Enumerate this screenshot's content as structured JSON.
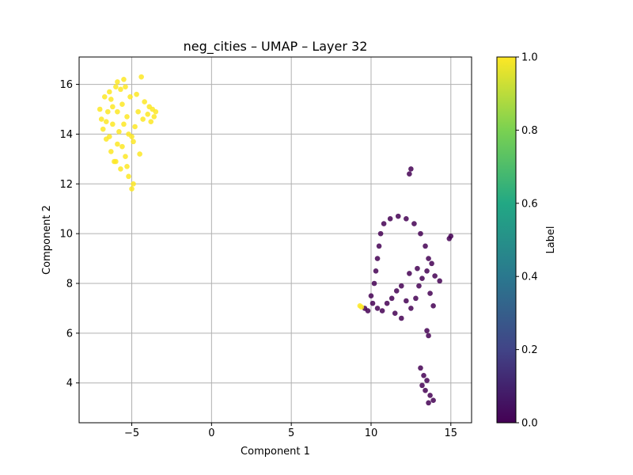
{
  "chart_data": {
    "type": "scatter",
    "title": "neg_cities – UMAP – Layer 32",
    "xlabel": "Component 1",
    "ylabel": "Component 2",
    "xlim": [
      -8.3,
      16.3
    ],
    "ylim": [
      2.4,
      17.1
    ],
    "xticks": [
      -5,
      0,
      5,
      10,
      15
    ],
    "xtick_labels": [
      "−5",
      "0",
      "5",
      "10",
      "15"
    ],
    "yticks": [
      4,
      6,
      8,
      10,
      12,
      14,
      16
    ],
    "yticks_labels": [
      "4",
      "6",
      "8",
      "10",
      "12",
      "14",
      "16"
    ],
    "grid": true,
    "colorbar": {
      "label": "Label",
      "colormap": "viridis",
      "range": [
        0.0,
        1.0
      ],
      "ticks": [
        0.0,
        0.2,
        0.4,
        0.6,
        0.8,
        1.0
      ],
      "tick_labels": [
        "0.0",
        "0.2",
        "0.4",
        "0.6",
        "0.8",
        "1.0"
      ]
    },
    "series": [
      {
        "label_value": 1.0,
        "color": "#fde725",
        "points": [
          [
            -7.0,
            15.0
          ],
          [
            -6.9,
            14.6
          ],
          [
            -6.8,
            14.2
          ],
          [
            -6.7,
            15.5
          ],
          [
            -6.6,
            13.8
          ],
          [
            -6.5,
            14.9
          ],
          [
            -6.4,
            15.7
          ],
          [
            -6.3,
            13.3
          ],
          [
            -6.2,
            14.4
          ],
          [
            -6.1,
            12.9
          ],
          [
            -6.0,
            15.9
          ],
          [
            -5.9,
            13.6
          ],
          [
            -5.8,
            14.1
          ],
          [
            -5.7,
            12.6
          ],
          [
            -5.6,
            15.2
          ],
          [
            -5.5,
            16.2
          ],
          [
            -5.4,
            13.1
          ],
          [
            -5.3,
            14.7
          ],
          [
            -5.2,
            12.3
          ],
          [
            -5.1,
            15.5
          ],
          [
            -5.0,
            13.9
          ],
          [
            -4.9,
            12.0
          ],
          [
            -5.0,
            11.8
          ],
          [
            -4.8,
            14.3
          ],
          [
            -4.7,
            15.6
          ],
          [
            -4.6,
            14.9
          ],
          [
            -4.5,
            13.2
          ],
          [
            -4.4,
            16.3
          ],
          [
            -4.3,
            14.6
          ],
          [
            -4.2,
            15.3
          ],
          [
            -4.0,
            14.8
          ],
          [
            -3.9,
            15.1
          ],
          [
            -3.8,
            14.5
          ],
          [
            -3.7,
            15.0
          ],
          [
            -3.6,
            14.7
          ],
          [
            -3.5,
            14.9
          ],
          [
            -6.6,
            14.5
          ],
          [
            -6.2,
            15.1
          ],
          [
            -5.9,
            14.9
          ],
          [
            -5.5,
            14.4
          ],
          [
            -5.6,
            13.5
          ],
          [
            -6.0,
            12.9
          ],
          [
            -5.3,
            12.7
          ],
          [
            -6.4,
            13.9
          ],
          [
            -5.7,
            15.8
          ],
          [
            -5.9,
            16.1
          ],
          [
            -6.3,
            15.4
          ],
          [
            -5.4,
            15.9
          ],
          [
            -5.2,
            14.0
          ],
          [
            -4.9,
            13.7
          ]
        ]
      },
      {
        "label_value": 0.0,
        "color": "#440154",
        "points": [
          [
            12.4,
            12.4
          ],
          [
            12.5,
            12.6
          ],
          [
            10.8,
            10.4
          ],
          [
            11.2,
            10.6
          ],
          [
            11.7,
            10.7
          ],
          [
            12.2,
            10.6
          ],
          [
            12.7,
            10.4
          ],
          [
            13.1,
            10.0
          ],
          [
            13.4,
            9.5
          ],
          [
            13.6,
            9.0
          ],
          [
            10.6,
            10.0
          ],
          [
            10.5,
            9.5
          ],
          [
            10.4,
            9.0
          ],
          [
            10.3,
            8.5
          ],
          [
            10.2,
            8.0
          ],
          [
            10.0,
            7.5
          ],
          [
            10.1,
            7.2
          ],
          [
            10.4,
            7.0
          ],
          [
            10.7,
            6.9
          ],
          [
            11.0,
            7.2
          ],
          [
            11.3,
            7.4
          ],
          [
            11.6,
            7.7
          ],
          [
            11.9,
            7.9
          ],
          [
            12.2,
            7.3
          ],
          [
            12.5,
            7.0
          ],
          [
            12.8,
            7.4
          ],
          [
            13.0,
            7.9
          ],
          [
            13.2,
            8.2
          ],
          [
            13.5,
            8.5
          ],
          [
            13.8,
            8.8
          ],
          [
            14.0,
            8.3
          ],
          [
            14.3,
            8.1
          ],
          [
            13.7,
            7.6
          ],
          [
            13.9,
            7.1
          ],
          [
            12.4,
            8.4
          ],
          [
            12.9,
            8.6
          ],
          [
            11.5,
            6.8
          ],
          [
            11.9,
            6.6
          ],
          [
            9.6,
            7.0
          ],
          [
            9.8,
            6.9
          ],
          [
            13.5,
            6.1
          ],
          [
            13.6,
            5.9
          ],
          [
            13.1,
            4.6
          ],
          [
            13.3,
            4.3
          ],
          [
            13.5,
            4.1
          ],
          [
            13.2,
            3.9
          ],
          [
            13.4,
            3.7
          ],
          [
            13.7,
            3.5
          ],
          [
            13.9,
            3.3
          ],
          [
            13.6,
            3.2
          ],
          [
            15.0,
            9.9
          ],
          [
            14.9,
            9.8
          ]
        ]
      },
      {
        "label_value": 1.0,
        "color": "#fde725",
        "points": [
          [
            9.3,
            7.1
          ],
          [
            9.4,
            7.05
          ]
        ]
      }
    ]
  }
}
